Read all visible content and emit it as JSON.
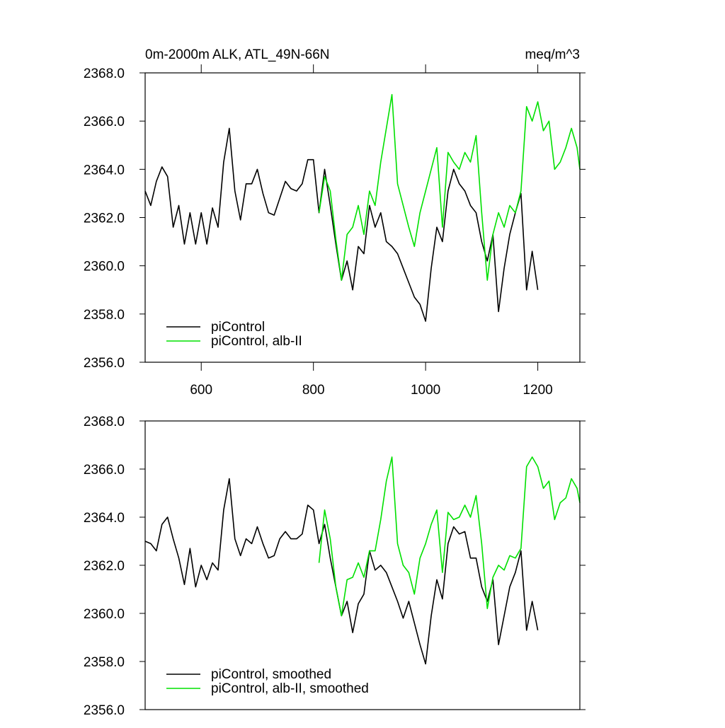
{
  "chart_data": [
    {
      "type": "line",
      "title": "0m-2000m ALK, ATL_49N-66N",
      "units": "meq/m^3",
      "xlim": [
        500,
        1275
      ],
      "ylim": [
        2356,
        2368
      ],
      "xticks": [
        600,
        800,
        1000,
        1200
      ],
      "yticks": [
        {
          "value": 2356,
          "label": "2356.0"
        },
        {
          "value": 2358,
          "label": "2358.0"
        },
        {
          "value": 2360,
          "label": "2360.0"
        },
        {
          "value": 2362,
          "label": "2362.0"
        },
        {
          "value": 2364,
          "label": "2364.0"
        },
        {
          "value": 2366,
          "label": "2366.0"
        },
        {
          "value": 2368,
          "label": "2368.0"
        }
      ],
      "legend": "lower left",
      "series": [
        {
          "name": "piControl",
          "color": "#000000",
          "x": [
            500,
            510,
            520,
            530,
            540,
            550,
            560,
            570,
            580,
            590,
            600,
            610,
            620,
            630,
            640,
            650,
            660,
            670,
            680,
            690,
            700,
            710,
            720,
            730,
            740,
            750,
            760,
            770,
            780,
            790,
            800,
            810,
            820,
            830,
            840,
            850,
            860,
            870,
            880,
            890,
            900,
            910,
            920,
            930,
            940,
            950,
            960,
            970,
            980,
            990,
            1000,
            1010,
            1020,
            1030,
            1040,
            1050,
            1060,
            1070,
            1080,
            1090,
            1100,
            1110,
            1120,
            1130,
            1140,
            1150,
            1160,
            1170,
            1180,
            1190,
            1200
          ],
          "values": [
            2363.1,
            2362.5,
            2363.5,
            2364.1,
            2363.7,
            2361.6,
            2362.5,
            2360.9,
            2362.2,
            2360.9,
            2362.2,
            2360.9,
            2362.4,
            2361.6,
            2364.3,
            2365.7,
            2363.1,
            2361.9,
            2363.4,
            2363.4,
            2364.0,
            2363.0,
            2362.2,
            2362.1,
            2362.8,
            2363.5,
            2363.2,
            2363.1,
            2363.4,
            2364.4,
            2364.4,
            2362.2,
            2364.0,
            2362.5,
            2360.9,
            2359.4,
            2360.2,
            2359.0,
            2360.8,
            2360.5,
            2362.5,
            2361.6,
            2362.2,
            2361.0,
            2360.8,
            2360.5,
            2359.9,
            2359.3,
            2358.7,
            2358.4,
            2357.7,
            2359.9,
            2361.6,
            2361.0,
            2363.1,
            2364.0,
            2363.4,
            2363.1,
            2362.5,
            2362.2,
            2361.0,
            2360.2,
            2361.3,
            2358.1,
            2359.9,
            2361.3,
            2362.2,
            2363.0,
            2359.0,
            2360.6,
            2359.0
          ]
        },
        {
          "name": "piControl, alb-II",
          "color": "#00e000",
          "x": [
            810,
            820,
            830,
            840,
            850,
            860,
            870,
            880,
            890,
            900,
            910,
            920,
            930,
            940,
            950,
            960,
            970,
            980,
            990,
            1000,
            1010,
            1020,
            1030,
            1040,
            1050,
            1060,
            1070,
            1080,
            1090,
            1100,
            1110,
            1120,
            1130,
            1140,
            1150,
            1160,
            1170,
            1180,
            1190,
            1200,
            1210,
            1220,
            1230,
            1240,
            1250,
            1260,
            1270,
            1275
          ],
          "values": [
            2362.2,
            2363.7,
            2363.1,
            2361.1,
            2359.4,
            2361.3,
            2361.6,
            2362.5,
            2361.3,
            2363.1,
            2362.5,
            2364.3,
            2365.7,
            2367.1,
            2363.4,
            2362.5,
            2361.6,
            2360.8,
            2362.2,
            2363.1,
            2364.0,
            2364.9,
            2361.6,
            2364.7,
            2364.3,
            2364.0,
            2364.7,
            2364.3,
            2365.4,
            2362.2,
            2359.4,
            2361.3,
            2362.2,
            2361.6,
            2362.5,
            2362.2,
            2363.1,
            2366.6,
            2366.0,
            2366.8,
            2365.6,
            2366.0,
            2364.0,
            2364.3,
            2364.9,
            2365.7,
            2364.9,
            2364.0
          ]
        }
      ]
    },
    {
      "type": "line",
      "xlim": [
        500,
        1275
      ],
      "ylim": [
        2356,
        2368
      ],
      "yticks": [
        {
          "value": 2356,
          "label": "2356.0"
        },
        {
          "value": 2358,
          "label": "2358.0"
        },
        {
          "value": 2360,
          "label": "2360.0"
        },
        {
          "value": 2362,
          "label": "2362.0"
        },
        {
          "value": 2364,
          "label": "2364.0"
        },
        {
          "value": 2366,
          "label": "2366.0"
        },
        {
          "value": 2368,
          "label": "2368.0"
        }
      ],
      "legend": "lower left",
      "series": [
        {
          "name": "piControl, smoothed",
          "color": "#000000",
          "x": [
            500,
            510,
            520,
            530,
            540,
            550,
            560,
            570,
            580,
            590,
            600,
            610,
            620,
            630,
            640,
            650,
            660,
            670,
            680,
            690,
            700,
            710,
            720,
            730,
            740,
            750,
            760,
            770,
            780,
            790,
            800,
            810,
            820,
            830,
            840,
            850,
            860,
            870,
            880,
            890,
            900,
            910,
            920,
            930,
            940,
            950,
            960,
            970,
            980,
            990,
            1000,
            1010,
            1020,
            1030,
            1040,
            1050,
            1060,
            1070,
            1080,
            1090,
            1100,
            1110,
            1120,
            1130,
            1140,
            1150,
            1160,
            1170,
            1180,
            1190,
            1200
          ],
          "values": [
            2363.0,
            2362.9,
            2362.6,
            2363.7,
            2364.0,
            2363.1,
            2362.3,
            2361.2,
            2362.7,
            2361.1,
            2362.0,
            2361.4,
            2362.1,
            2361.8,
            2364.3,
            2365.6,
            2363.1,
            2362.4,
            2363.1,
            2362.9,
            2363.6,
            2362.9,
            2362.3,
            2362.4,
            2363.1,
            2363.4,
            2363.1,
            2363.1,
            2363.3,
            2364.5,
            2364.3,
            2362.9,
            2363.7,
            2362.3,
            2361.1,
            2359.9,
            2360.5,
            2359.2,
            2360.4,
            2360.8,
            2362.6,
            2361.8,
            2362.0,
            2361.7,
            2361.1,
            2360.5,
            2359.8,
            2360.5,
            2359.6,
            2358.7,
            2357.9,
            2359.9,
            2361.4,
            2360.6,
            2362.9,
            2363.6,
            2363.3,
            2363.4,
            2362.3,
            2362.3,
            2361.1,
            2360.5,
            2361.4,
            2358.7,
            2359.9,
            2361.1,
            2361.7,
            2362.6,
            2359.3,
            2360.5,
            2359.3
          ]
        },
        {
          "name": "piControl, alb-II, smoothed",
          "color": "#00e000",
          "x": [
            810,
            820,
            830,
            840,
            850,
            860,
            870,
            880,
            890,
            900,
            910,
            920,
            930,
            940,
            950,
            960,
            970,
            980,
            990,
            1000,
            1010,
            1020,
            1030,
            1040,
            1050,
            1060,
            1070,
            1080,
            1090,
            1100,
            1110,
            1120,
            1130,
            1140,
            1150,
            1160,
            1170,
            1180,
            1190,
            1200,
            1210,
            1220,
            1230,
            1240,
            1250,
            1260,
            1270,
            1275
          ],
          "values": [
            2362.1,
            2364.3,
            2363.1,
            2361.1,
            2359.9,
            2361.4,
            2361.5,
            2362.1,
            2361.5,
            2362.6,
            2362.6,
            2363.9,
            2365.5,
            2366.5,
            2362.9,
            2362.0,
            2361.7,
            2360.8,
            2362.3,
            2362.9,
            2363.7,
            2364.3,
            2361.7,
            2364.2,
            2363.9,
            2364.0,
            2364.5,
            2364.0,
            2364.9,
            2362.9,
            2360.2,
            2361.5,
            2362.0,
            2361.8,
            2362.4,
            2362.3,
            2362.7,
            2366.1,
            2366.5,
            2366.1,
            2365.2,
            2365.5,
            2363.9,
            2364.6,
            2364.8,
            2365.6,
            2365.2,
            2364.6
          ]
        }
      ]
    }
  ]
}
